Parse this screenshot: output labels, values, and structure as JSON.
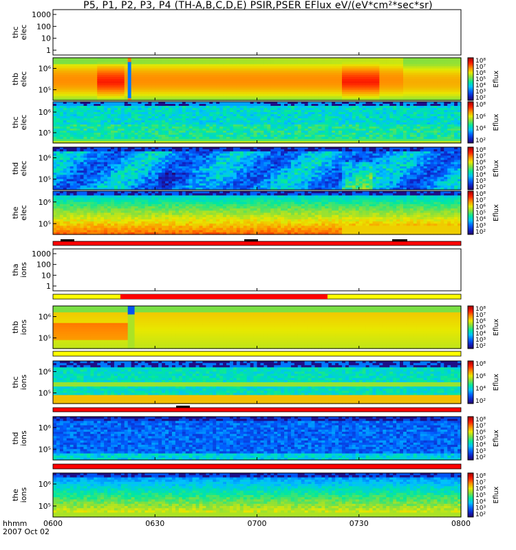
{
  "title": "P5, P1, P2, P3, P4 (TH-A,B,C,D,E) PSIR,PSER EFlux eV/(eV*cm²*sec*sr)",
  "x_label_top": "hhmm",
  "x_label_bottom": "2007 Oct 02",
  "colors": {
    "colormap": [
      "#2a0058",
      "#1020c0",
      "#0060ff",
      "#00c0ff",
      "#00e8a0",
      "#80e040",
      "#e8e800",
      "#ff9000",
      "#ff2000",
      "#b00000"
    ],
    "bar_red": "#ff0000",
    "bar_yellow": "#ffff00",
    "bar_black": "#000000"
  },
  "chart_data": {
    "type": "heatmap",
    "x_ticks": [
      "0600",
      "0630",
      "0700",
      "0730",
      "0800"
    ],
    "x_range": [
      "0600",
      "0800"
    ],
    "panels": [
      {
        "ylabel_1": "thc",
        "ylabel_2": "elec",
        "y_ticks": [
          "1000",
          "100",
          "10",
          "1"
        ],
        "empty": true,
        "has_colorbar": false
      },
      {
        "ylabel_1": "thb",
        "ylabel_2": "elec",
        "y_ticks": [
          "10⁶",
          "10⁵"
        ],
        "empty": false,
        "has_colorbar": true,
        "colorbar_ticks": [
          "10⁸",
          "10⁷",
          "10⁶",
          "10⁵",
          "10⁴",
          "10³",
          "10²"
        ],
        "colorbar_label": "Eflux",
        "profile": "thb_elec"
      },
      {
        "ylabel_1": "thc",
        "ylabel_2": "elec",
        "y_ticks": [
          "10⁶",
          "10⁵"
        ],
        "empty": false,
        "has_colorbar": true,
        "colorbar_ticks": [
          "10⁸",
          "10⁶",
          "10⁴",
          "10²"
        ],
        "colorbar_label": "Eflux",
        "profile": "thc_elec"
      },
      {
        "ylabel_1": "thd",
        "ylabel_2": "elec",
        "y_ticks": [
          "10⁶",
          "10⁵"
        ],
        "empty": false,
        "has_colorbar": true,
        "colorbar_ticks": [
          "10⁸",
          "10⁷",
          "10⁶",
          "10⁵",
          "10⁴",
          "10³",
          "10²"
        ],
        "colorbar_label": "Eflux",
        "profile": "thd_elec"
      },
      {
        "ylabel_1": "the",
        "ylabel_2": "elec",
        "y_ticks": [
          "10⁶",
          "10⁵"
        ],
        "empty": false,
        "has_colorbar": true,
        "colorbar_ticks": [
          "10⁸",
          "10⁷",
          "10⁶",
          "10⁵",
          "10⁴",
          "10³",
          "10²"
        ],
        "colorbar_label": "Eflux",
        "profile": "the_elec"
      },
      {
        "ylabel_1": "tha",
        "ylabel_2": "ions",
        "y_ticks": [
          "1000",
          "100",
          "10",
          "1"
        ],
        "empty": true,
        "has_colorbar": false
      },
      {
        "ylabel_1": "thb",
        "ylabel_2": "ions",
        "y_ticks": [
          "10⁶",
          "10⁵"
        ],
        "empty": false,
        "has_colorbar": true,
        "colorbar_ticks": [
          "10⁸",
          "10⁷",
          "10⁶",
          "10⁵",
          "10⁴",
          "10³",
          "10²"
        ],
        "colorbar_label": "Eflux",
        "profile": "thb_ions"
      },
      {
        "ylabel_1": "thc",
        "ylabel_2": "ions",
        "y_ticks": [
          "10⁶",
          "10⁵"
        ],
        "empty": false,
        "has_colorbar": true,
        "colorbar_ticks": [
          "10⁸",
          "10⁶",
          "10⁴",
          "10²"
        ],
        "colorbar_label": "Eflux",
        "profile": "thc_ions"
      },
      {
        "ylabel_1": "thd",
        "ylabel_2": "ions",
        "y_ticks": [
          "10⁶",
          "10⁵"
        ],
        "empty": false,
        "has_colorbar": true,
        "colorbar_ticks": [
          "10⁸",
          "10⁷",
          "10⁶",
          "10⁵",
          "10⁴",
          "10³",
          "10²"
        ],
        "colorbar_label": "Eflux",
        "profile": "thd_ions"
      },
      {
        "ylabel_1": "the",
        "ylabel_2": "ions",
        "y_ticks": [
          "10⁶",
          "10⁵"
        ],
        "empty": false,
        "has_colorbar": true,
        "colorbar_ticks": [
          "10⁸",
          "10⁷",
          "10⁶",
          "10⁵",
          "10⁴",
          "10³",
          "10²"
        ],
        "colorbar_label": "Eflux",
        "profile": "the_ions"
      }
    ]
  }
}
